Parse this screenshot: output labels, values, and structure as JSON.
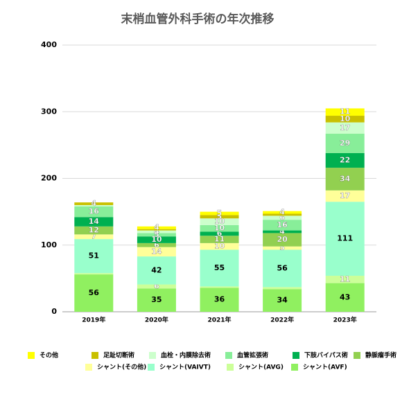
{
  "chart_data": {
    "type": "stacked_bar",
    "title": "末梢血管外科手術の年次推移",
    "categories": [
      "2019年",
      "2020年",
      "2021年",
      "2022年",
      "2023年"
    ],
    "ylim": [
      0,
      400
    ],
    "yticks": [
      0,
      100,
      200,
      300,
      400
    ],
    "grid": true,
    "series": [
      {
        "name": "シャント(AVF)",
        "color": "#90f060",
        "values": [
          56,
          35,
          36,
          34,
          43
        ]
      },
      {
        "name": "シャント(AVG)",
        "color": "#ccff99",
        "values": [
          2,
          6,
          2,
          3,
          11
        ]
      },
      {
        "name": "シャント(VAIVT)",
        "color": "#99ffcc",
        "values": [
          51,
          42,
          55,
          56,
          111
        ]
      },
      {
        "name": "シャント(その他)",
        "color": "#ffff99",
        "values": [
          7,
          14,
          10,
          5,
          17
        ]
      },
      {
        "name": "静脈瘤手術",
        "color": "#92d050",
        "values": [
          12,
          6,
          11,
          20,
          34
        ]
      },
      {
        "name": "下肢バイパス術",
        "color": "#00b050",
        "values": [
          14,
          10,
          6,
          4,
          22
        ]
      },
      {
        "name": "血管拡張術",
        "color": "#88ee99",
        "values": [
          16,
          5,
          10,
          16,
          29
        ]
      },
      {
        "name": "血栓・内膜除去術",
        "color": "#ccffcc",
        "values": [
          2,
          4,
          10,
          6,
          17
        ]
      },
      {
        "name": "足趾切断術",
        "color": "#c9c000",
        "values": [
          4,
          2,
          5,
          3,
          10
        ]
      },
      {
        "name": "その他",
        "color": "#ffff00",
        "values": [
          0,
          4,
          5,
          4,
          11
        ]
      }
    ]
  }
}
